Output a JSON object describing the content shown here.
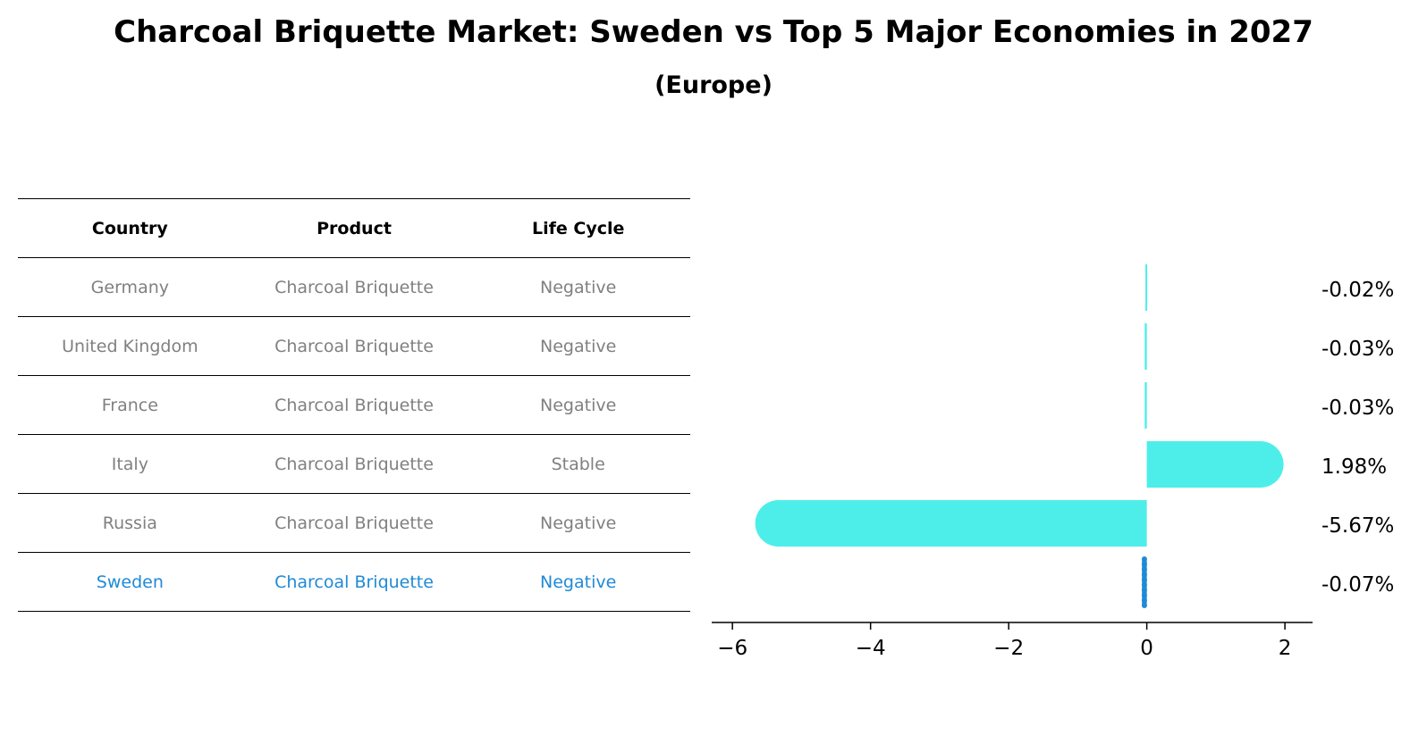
{
  "title": "Charcoal Briquette Market: Sweden vs Top 5 Major Economies in 2027",
  "subtitle": "(Europe)",
  "table": {
    "headers": [
      "Country",
      "Product",
      "Life Cycle"
    ],
    "rows": [
      [
        "Germany",
        "Charcoal Briquette",
        "Negative"
      ],
      [
        "United Kingdom",
        "Charcoal Briquette",
        "Negative"
      ],
      [
        "France",
        "Charcoal Briquette",
        "Negative"
      ],
      [
        "Italy",
        "Charcoal Briquette",
        "Stable"
      ],
      [
        "Russia",
        "Charcoal Briquette",
        "Negative"
      ],
      [
        "Sweden",
        "Charcoal Briquette",
        "Negative"
      ]
    ]
  },
  "chart_data": {
    "type": "bar",
    "orientation": "horizontal",
    "categories": [
      "Germany",
      "United Kingdom",
      "France",
      "Italy",
      "Russia",
      "Sweden"
    ],
    "values": [
      -0.02,
      -0.03,
      -0.03,
      1.98,
      -5.67,
      -0.07
    ],
    "value_labels": [
      "-0.02%",
      "-0.03%",
      "-0.03%",
      "1.98%",
      "-5.67%",
      "-0.07%"
    ],
    "highlight": "Sweden",
    "xlim": [
      -6.3,
      2.4
    ],
    "xticks": [
      -6,
      -4,
      -2,
      0,
      2
    ],
    "xtick_labels": [
      "−6",
      "−4",
      "−2",
      "0",
      "2"
    ],
    "colors": {
      "bar": "#4deeea",
      "highlight": "#1f8ad6"
    }
  }
}
